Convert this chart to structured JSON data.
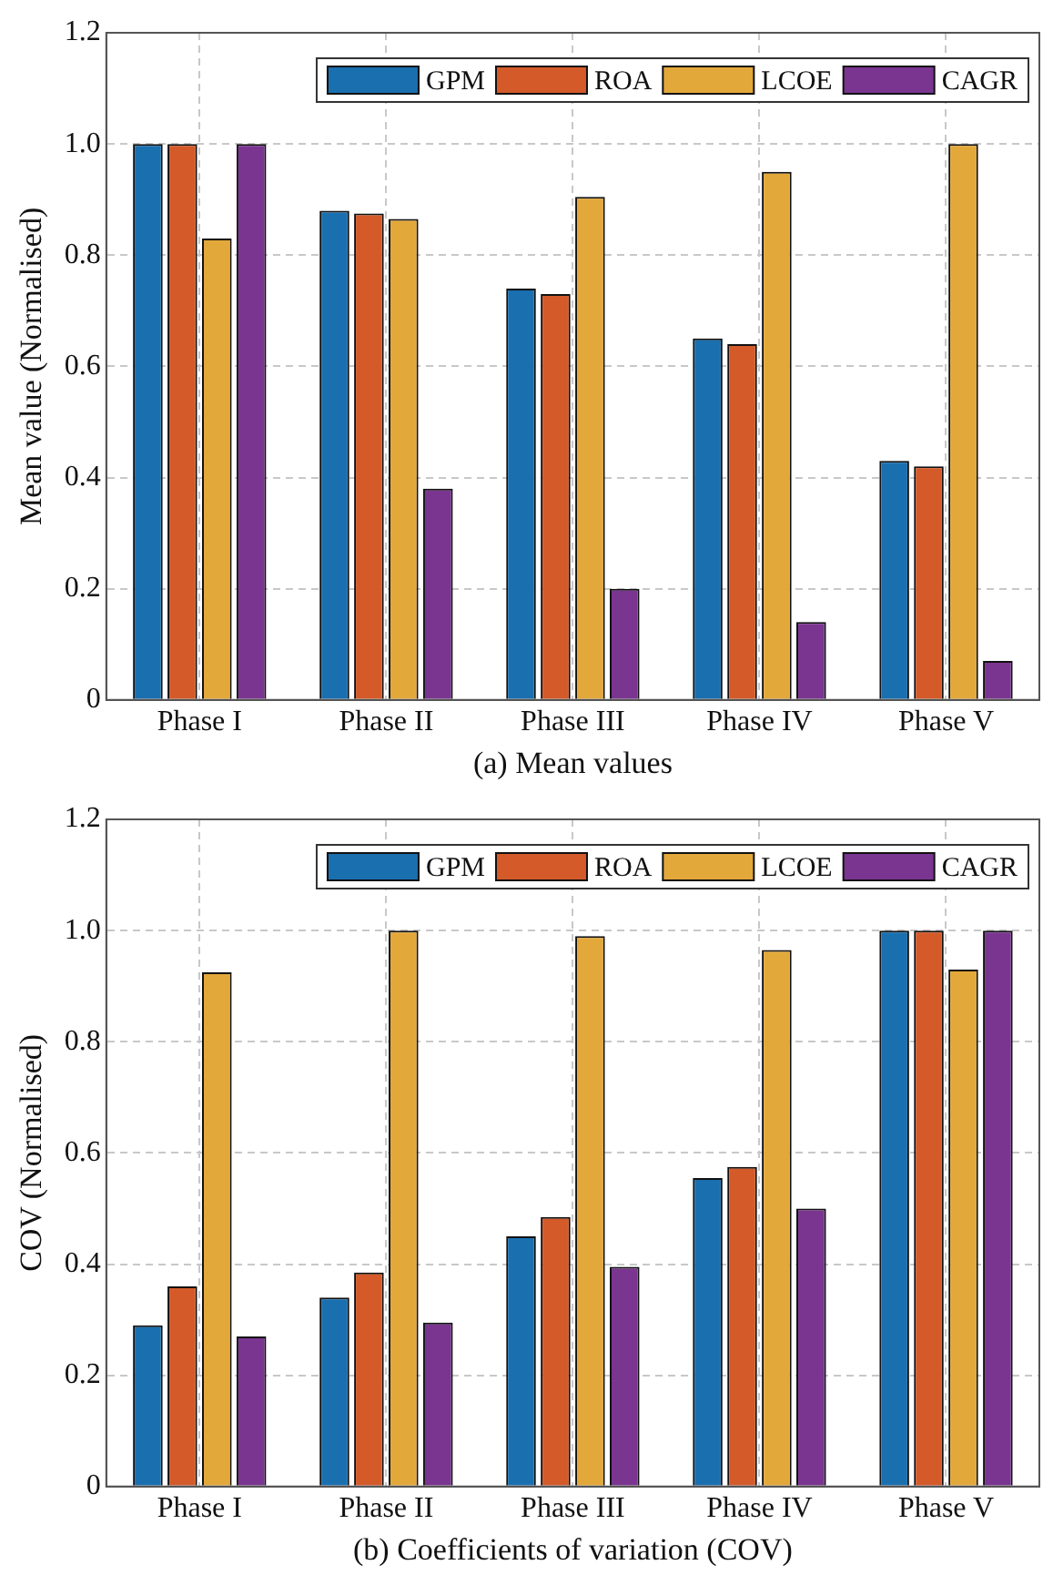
{
  "chart_data": [
    {
      "type": "bar",
      "categories": [
        "Phase I",
        "Phase II",
        "Phase III",
        "Phase IV",
        "Phase V"
      ],
      "xlabel": "(a) Mean values",
      "ylabel": "Mean value (Normalised)",
      "ylim": [
        0,
        1.2
      ],
      "yticks": [
        0,
        0.2,
        0.4,
        0.6,
        0.8,
        {
          "value": 1,
          "label": "1.0"
        },
        1.2
      ],
      "grid": true,
      "legend": "top right",
      "series": [
        {
          "name": "GPM",
          "color": "#1a6faf",
          "values": [
            1.0,
            0.88,
            0.74,
            0.65,
            0.43
          ]
        },
        {
          "name": "ROA",
          "color": "#d45a2a",
          "values": [
            1.0,
            0.875,
            0.73,
            0.64,
            0.42
          ]
        },
        {
          "name": "LCOE",
          "color": "#e3a83a",
          "values": [
            0.83,
            0.865,
            0.905,
            0.95,
            1.0
          ]
        },
        {
          "name": "CAGR",
          "color": "#7a3590",
          "values": [
            1.0,
            0.38,
            0.2,
            0.14,
            0.07
          ]
        }
      ]
    },
    {
      "type": "bar",
      "categories": [
        "Phase I",
        "Phase II",
        "Phase III",
        "Phase IV",
        "Phase V"
      ],
      "xlabel": "(b) Coefficients of variation (COV)",
      "ylabel": "COV (Normalised)",
      "ylim": [
        0,
        1.2
      ],
      "yticks": [
        0,
        0.2,
        0.4,
        0.6,
        0.8,
        {
          "value": 1,
          "label": "1.0"
        },
        1.2
      ],
      "grid": true,
      "legend": "top right",
      "series": [
        {
          "name": "GPM",
          "color": "#1a6faf",
          "values": [
            0.29,
            0.34,
            0.45,
            0.555,
            1.0
          ]
        },
        {
          "name": "ROA",
          "color": "#d45a2a",
          "values": [
            0.36,
            0.385,
            0.485,
            0.575,
            1.0
          ]
        },
        {
          "name": "LCOE",
          "color": "#e3a83a",
          "values": [
            0.925,
            1.0,
            0.99,
            0.965,
            0.93
          ]
        },
        {
          "name": "CAGR",
          "color": "#7a3590",
          "values": [
            0.27,
            0.295,
            0.395,
            0.5,
            1.0
          ]
        }
      ]
    }
  ]
}
